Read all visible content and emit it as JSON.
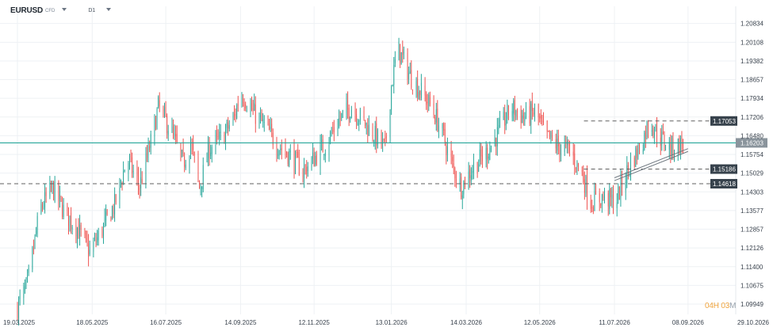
{
  "header": {
    "symbol": "EURUSD",
    "symbol_type": "CFD",
    "timeframe": "D1"
  },
  "countdown": {
    "hours": "04",
    "hours_unit": "H",
    "minutes": "03",
    "minutes_unit": "M"
  },
  "colors": {
    "up": "#26a69a",
    "down": "#ef5350",
    "price_line": "#26a69a",
    "dashed": "#616161",
    "tag_dark": "#37424c",
    "current_tag": "#8a949c",
    "gridline": "#eef1f4",
    "axis_text": "#39424d",
    "trend": "#6f7880"
  },
  "chart_data": {
    "type": "candlestick",
    "title": "",
    "xlabel": "",
    "ylabel": "",
    "ylim": [
      1.0955,
      1.215
    ],
    "grid": true,
    "y_ticks": [
      "1.20834",
      "1.20108",
      "1.19382",
      "1.18657",
      "1.17934",
      "1.17206",
      "1.16480",
      "1.15754",
      "1.15029",
      "1.14303",
      "1.13577",
      "1.12857",
      "1.12126",
      "1.11400",
      "1.10675",
      "1.09949"
    ],
    "x_ticks": [
      "19.03.2025",
      "18.05.2025",
      "16.07.2025",
      "14.09.2025",
      "12.11.2025",
      "13.01.2026",
      "14.03.2026",
      "12.05.2026",
      "11.07.2026",
      "08.09.2026",
      "29.10.2026"
    ],
    "current_price": {
      "label": "1.16203",
      "value": 1.16203
    },
    "levels": [
      {
        "label": "1.17053",
        "value": 1.17053,
        "style": "dashed",
        "from": "start_short"
      },
      {
        "label": "1.15186",
        "value": 1.15186,
        "style": "dashed",
        "from": "start_short"
      },
      {
        "label": "1.14618",
        "value": 1.14618,
        "style": "dashed",
        "from": "start_full"
      }
    ],
    "trend_channel": {
      "start": {
        "x": "11.07.2026",
        "y": 1.1485
      },
      "end": {
        "x": "08.09.2026",
        "y": 1.1598
      },
      "gap": 0.0011
    },
    "close_path": [
      {
        "x": "19.03.2025",
        "y": 1.0982
      },
      {
        "x": "27.03.2025",
        "y": 1.107
      },
      {
        "x": "06.04.2025",
        "y": 1.136
      },
      {
        "x": "16.04.2025",
        "y": 1.1445
      },
      {
        "x": "26.04.2025",
        "y": 1.135
      },
      {
        "x": "06.05.2025",
        "y": 1.129
      },
      {
        "x": "16.05.2025",
        "y": 1.1195
      },
      {
        "x": "26.05.2025",
        "y": 1.1285
      },
      {
        "x": "05.06.2025",
        "y": 1.138
      },
      {
        "x": "15.06.2025",
        "y": 1.156
      },
      {
        "x": "25.06.2025",
        "y": 1.145
      },
      {
        "x": "05.07.2025",
        "y": 1.164
      },
      {
        "x": "10.07.2025",
        "y": 1.176
      },
      {
        "x": "20.07.2025",
        "y": 1.167
      },
      {
        "x": "30.07.2025",
        "y": 1.154
      },
      {
        "x": "05.08.2025",
        "y": 1.162
      },
      {
        "x": "12.08.2025",
        "y": 1.1445
      },
      {
        "x": "20.08.2025",
        "y": 1.16
      },
      {
        "x": "30.08.2025",
        "y": 1.164
      },
      {
        "x": "09.09.2025",
        "y": 1.172
      },
      {
        "x": "14.09.2025",
        "y": 1.182
      },
      {
        "x": "24.09.2025",
        "y": 1.174
      },
      {
        "x": "04.10.2025",
        "y": 1.168
      },
      {
        "x": "14.10.2025",
        "y": 1.161
      },
      {
        "x": "24.10.2025",
        "y": 1.157
      },
      {
        "x": "03.11.2025",
        "y": 1.151
      },
      {
        "x": "12.11.2025",
        "y": 1.156
      },
      {
        "x": "22.11.2025",
        "y": 1.162
      },
      {
        "x": "02.12.2025",
        "y": 1.171
      },
      {
        "x": "12.12.2025",
        "y": 1.176
      },
      {
        "x": "22.12.2025",
        "y": 1.17
      },
      {
        "x": "01.01.2026",
        "y": 1.164
      },
      {
        "x": "08.01.2026",
        "y": 1.16
      },
      {
        "x": "13.01.2026",
        "y": 1.184
      },
      {
        "x": "18.01.2026",
        "y": 1.199
      },
      {
        "x": "28.01.2026",
        "y": 1.188
      },
      {
        "x": "07.02.2026",
        "y": 1.181
      },
      {
        "x": "14.02.2026",
        "y": 1.176
      },
      {
        "x": "22.02.2026",
        "y": 1.167
      },
      {
        "x": "03.03.2026",
        "y": 1.153
      },
      {
        "x": "10.03.2026",
        "y": 1.145
      },
      {
        "x": "20.03.2026",
        "y": 1.153
      },
      {
        "x": "30.03.2026",
        "y": 1.158
      },
      {
        "x": "09.04.2026",
        "y": 1.166
      },
      {
        "x": "19.04.2026",
        "y": 1.176
      },
      {
        "x": "29.04.2026",
        "y": 1.172
      },
      {
        "x": "09.05.2026",
        "y": 1.174
      },
      {
        "x": "16.05.2026",
        "y": 1.165
      },
      {
        "x": "26.05.2026",
        "y": 1.161
      },
      {
        "x": "05.06.2026",
        "y": 1.159
      },
      {
        "x": "15.06.2026",
        "y": 1.15
      },
      {
        "x": "22.06.2026",
        "y": 1.139
      },
      {
        "x": "02.07.2026",
        "y": 1.141
      },
      {
        "x": "12.07.2026",
        "y": 1.139
      },
      {
        "x": "17.07.2026",
        "y": 1.146
      },
      {
        "x": "24.07.2026",
        "y": 1.154
      },
      {
        "x": "02.08.2026",
        "y": 1.162
      },
      {
        "x": "08.08.2026",
        "y": 1.171
      },
      {
        "x": "15.08.2026",
        "y": 1.165
      },
      {
        "x": "25.08.2026",
        "y": 1.16
      },
      {
        "x": "05.09.2026",
        "y": 1.162
      }
    ]
  }
}
